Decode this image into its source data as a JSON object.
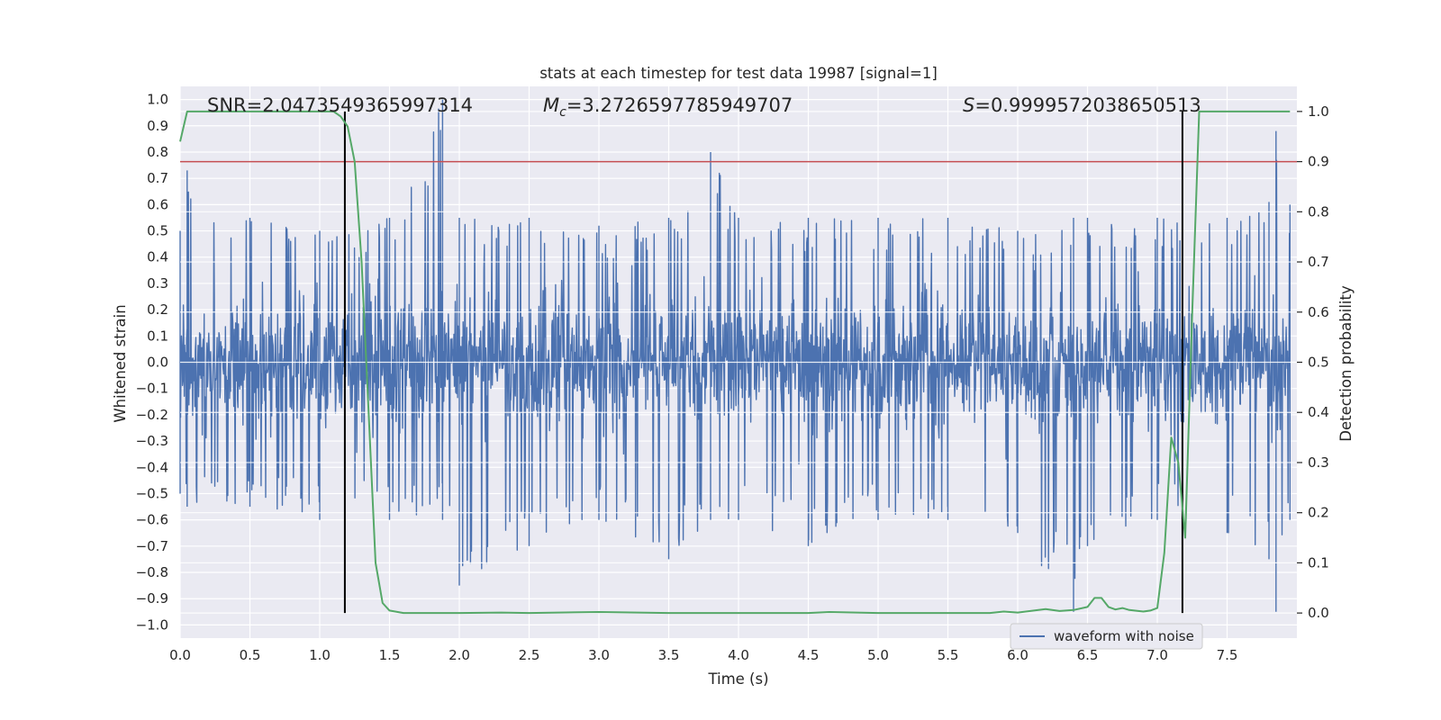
{
  "chart_data": {
    "type": "line",
    "title": "stats at each timestep for test data 19987 [signal=1]",
    "xlabel": "Time (s)",
    "ylabel_left": "Whitened strain",
    "ylabel_right": "Detection probability",
    "xlim": [
      0.0,
      8.0
    ],
    "ylim_left": [
      -1.05,
      1.05
    ],
    "ylim_right": [
      -0.05,
      1.05
    ],
    "x_ticks": [
      "0.0",
      "0.5",
      "1.0",
      "1.5",
      "2.0",
      "2.5",
      "3.0",
      "3.5",
      "4.0",
      "4.5",
      "5.0",
      "5.5",
      "6.0",
      "6.5",
      "7.0",
      "7.5"
    ],
    "x_tick_values": [
      0.0,
      0.5,
      1.0,
      1.5,
      2.0,
      2.5,
      3.0,
      3.5,
      4.0,
      4.5,
      5.0,
      5.5,
      6.0,
      6.5,
      7.0,
      7.5
    ],
    "y_ticks_left": [
      "1.0",
      "0.9",
      "0.8",
      "0.7",
      "0.6",
      "0.5",
      "0.4",
      "0.3",
      "0.2",
      "0.1",
      "0.0",
      "−0.1",
      "−0.2",
      "−0.3",
      "−0.4",
      "−0.5",
      "−0.6",
      "−0.7",
      "−0.8",
      "−0.9",
      "−1.0"
    ],
    "y_tick_values_left": [
      1.0,
      0.9,
      0.8,
      0.7,
      0.6,
      0.5,
      0.4,
      0.3,
      0.2,
      0.1,
      0.0,
      -0.1,
      -0.2,
      -0.3,
      -0.4,
      -0.5,
      -0.6,
      -0.7,
      -0.8,
      -0.9,
      -1.0
    ],
    "y_ticks_right": [
      "1.0",
      "0.9",
      "0.8",
      "0.7",
      "0.6",
      "0.5",
      "0.4",
      "0.3",
      "0.2",
      "0.1",
      "0.0"
    ],
    "y_tick_values_right": [
      1.0,
      0.9,
      0.8,
      0.7,
      0.6,
      0.5,
      0.4,
      0.3,
      0.2,
      0.1,
      0.0
    ],
    "annotations": {
      "snr": "SNR=2.0473549365997314",
      "mc_symbol": "M",
      "mc_subscript": "c",
      "mc_value": "=3.2726597785949707",
      "s_symbol": "S",
      "s_value": "=0.9999572038650513"
    },
    "threshold_right": 0.9,
    "event_lines_x": [
      1.18,
      7.18
    ],
    "legend": {
      "label": "waveform with noise",
      "placement": "lower-right"
    },
    "grid": true,
    "colors": {
      "waveform": "#4c72b0",
      "probability": "#55a868",
      "threshold": "#c44e52",
      "event_lines": "#000000",
      "axes_bg": "#eaeaf2",
      "grid": "#ffffff"
    },
    "series": [
      {
        "name": "waveform with noise",
        "axis": "left",
        "envelope": {
          "x": [
            0.0,
            0.05,
            0.5,
            1.0,
            1.5,
            1.88,
            2.0,
            2.5,
            3.0,
            3.5,
            3.8,
            4.0,
            4.5,
            5.0,
            5.5,
            6.0,
            6.4,
            6.5,
            7.0,
            7.5,
            7.8,
            7.85,
            7.95
          ],
          "upper": [
            0.5,
            0.73,
            0.55,
            0.5,
            0.55,
            1.0,
            0.55,
            0.55,
            0.52,
            0.55,
            0.8,
            0.55,
            0.55,
            0.55,
            0.55,
            0.5,
            0.55,
            0.55,
            0.55,
            0.55,
            0.61,
            0.88,
            0.6
          ],
          "lower": [
            -0.5,
            -0.55,
            -0.55,
            -0.6,
            -0.6,
            -0.6,
            -0.85,
            -0.7,
            -0.6,
            -0.75,
            -0.6,
            -0.6,
            -0.7,
            -0.6,
            -0.6,
            -0.65,
            -0.95,
            -0.7,
            -0.6,
            -0.65,
            -0.75,
            -0.95,
            -0.6
          ]
        }
      },
      {
        "name": "detection probability",
        "axis": "right",
        "x": [
          0.0,
          0.05,
          0.1,
          0.5,
          1.0,
          1.1,
          1.15,
          1.2,
          1.25,
          1.3,
          1.35,
          1.4,
          1.45,
          1.5,
          1.6,
          2.0,
          2.3,
          2.5,
          3.0,
          3.5,
          4.0,
          4.5,
          4.65,
          5.0,
          5.5,
          5.8,
          5.9,
          6.0,
          6.2,
          6.3,
          6.4,
          6.5,
          6.55,
          6.6,
          6.65,
          6.7,
          6.75,
          6.8,
          6.9,
          6.95,
          7.0,
          7.05,
          7.1,
          7.15,
          7.2,
          7.25,
          7.3,
          7.5,
          7.6,
          7.95
        ],
        "y": [
          0.94,
          1.0,
          1.0,
          1.0,
          1.0,
          1.0,
          0.99,
          0.97,
          0.9,
          0.7,
          0.4,
          0.1,
          0.02,
          0.005,
          0.0,
          0.0,
          0.001,
          0.0,
          0.002,
          0.0,
          0.0,
          0.0,
          0.002,
          0.0,
          0.0,
          0.0,
          0.003,
          0.001,
          0.008,
          0.004,
          0.006,
          0.012,
          0.03,
          0.03,
          0.012,
          0.007,
          0.01,
          0.006,
          0.003,
          0.005,
          0.01,
          0.12,
          0.35,
          0.3,
          0.15,
          0.6,
          1.0,
          1.0,
          1.0,
          1.0
        ]
      }
    ]
  }
}
